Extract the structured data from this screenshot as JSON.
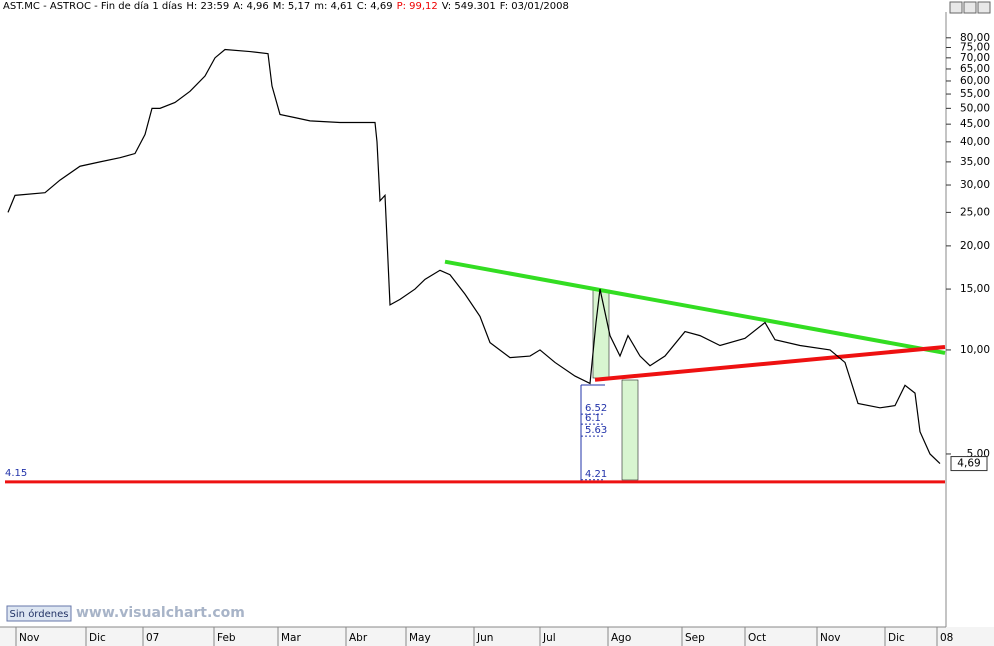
{
  "header": [
    "AST.MC - ASTROC - Fin de día 1 días",
    "H: 23:59",
    "A: 4,96",
    "M: 5,17",
    "m: 4,61",
    "C: 4,69",
    "P: 99,12",
    "V: 549.301",
    "F: 03/01/2008"
  ],
  "status": "Sin órdenes",
  "watermark": "www.visualchart.com",
  "chart_data": {
    "type": "line",
    "log_scale": true,
    "color": "#000000",
    "x": [
      1.5,
      5,
      20,
      27.5,
      37.5,
      47.5,
      57.5,
      65,
      70,
      73.5,
      77.5,
      85,
      92.5,
      100,
      105,
      110,
      122.5,
      131.5,
      133.5,
      137.5,
      145,
      152.5,
      167.5,
      185,
      186,
      187.5,
      190,
      192.5,
      197.5,
      205,
      210,
      217.5,
      222.5,
      230,
      237.5,
      242.5,
      252.5,
      262.5,
      267.5,
      275,
      285,
      292.5,
      295.5,
      297.5,
      302.5,
      307.5,
      311.5,
      317.5,
      322.5,
      330,
      340,
      347.5,
      357.5,
      370,
      380,
      385,
      397.5,
      412.5,
      420,
      426.5,
      437.5,
      445,
      450,
      455,
      457.5,
      462.5,
      467.5
    ],
    "series": [
      {
        "name": "ASTROC",
        "color": "#000000",
        "values": [
          25,
          28,
          28.5,
          31,
          34,
          35,
          36,
          37,
          42,
          50,
          50,
          52,
          56,
          62,
          70,
          74,
          73,
          72,
          58,
          48,
          47,
          46,
          45.5,
          45.5,
          40,
          27,
          28,
          13.5,
          14,
          15,
          16,
          17,
          16.5,
          14.5,
          12.5,
          10.5,
          9.5,
          9.6,
          10,
          9.2,
          8.4,
          8.0,
          12,
          15,
          11,
          9.6,
          11,
          9.6,
          9.0,
          9.6,
          11.3,
          11,
          10.3,
          10.8,
          12,
          10.7,
          10.3,
          10,
          9.2,
          7.0,
          6.8,
          6.9,
          7.9,
          7.5,
          5.8,
          5.0,
          4.69
        ]
      }
    ],
    "last_price": {
      "value": 4.69,
      "label": "4,69"
    },
    "xlim": [
      0,
      470
    ],
    "ylim": [
      1.6,
      95
    ],
    "xticks": [
      {
        "value": 5.5,
        "label": "Nov"
      },
      {
        "value": 40.5,
        "label": "Dic"
      },
      {
        "value": 69,
        "label": "07"
      },
      {
        "value": 104.5,
        "label": "Feb"
      },
      {
        "value": 136.5,
        "label": "Mar"
      },
      {
        "value": 170.5,
        "label": "Abr"
      },
      {
        "value": 200.5,
        "label": "May"
      },
      {
        "value": 234.5,
        "label": "Jun"
      },
      {
        "value": 267.5,
        "label": "Jul"
      },
      {
        "value": 301.5,
        "label": "Ago"
      },
      {
        "value": 338.5,
        "label": "Sep"
      },
      {
        "value": 370,
        "label": "Oct"
      },
      {
        "value": 406,
        "label": "Nov"
      },
      {
        "value": 440,
        "label": "Dic"
      },
      {
        "value": 466,
        "label": "08"
      }
    ],
    "yticks": [
      {
        "value": 5,
        "label": "5,00"
      },
      {
        "value": 10,
        "label": "10,00"
      },
      {
        "value": 15,
        "label": "15,00"
      },
      {
        "value": 20,
        "label": "20,00"
      },
      {
        "value": 25,
        "label": "25,00"
      },
      {
        "value": 30,
        "label": "30,00"
      },
      {
        "value": 35,
        "label": "35,00"
      },
      {
        "value": 40,
        "label": "40,00"
      },
      {
        "value": 45,
        "label": "45,00"
      },
      {
        "value": 50,
        "label": "50,00"
      },
      {
        "value": 55,
        "label": "55,00"
      },
      {
        "value": 60,
        "label": "60,00"
      },
      {
        "value": 65,
        "label": "65,00"
      },
      {
        "value": 70,
        "label": "70,00"
      },
      {
        "value": 75,
        "label": "75,00"
      },
      {
        "value": 80,
        "label": "80,00"
      }
    ],
    "trendlines": [
      {
        "color": "#33dd22",
        "x": [
          220,
          470
        ],
        "values": [
          18,
          9.8
        ]
      },
      {
        "color": "#ee1111",
        "x": [
          295,
          470
        ],
        "values": [
          8.2,
          10.2
        ]
      }
    ],
    "hline": {
      "value": 4.15,
      "color": "#ee1111"
    },
    "levels": [
      6.52,
      6.1,
      5.63,
      4.21
    ]
  }
}
